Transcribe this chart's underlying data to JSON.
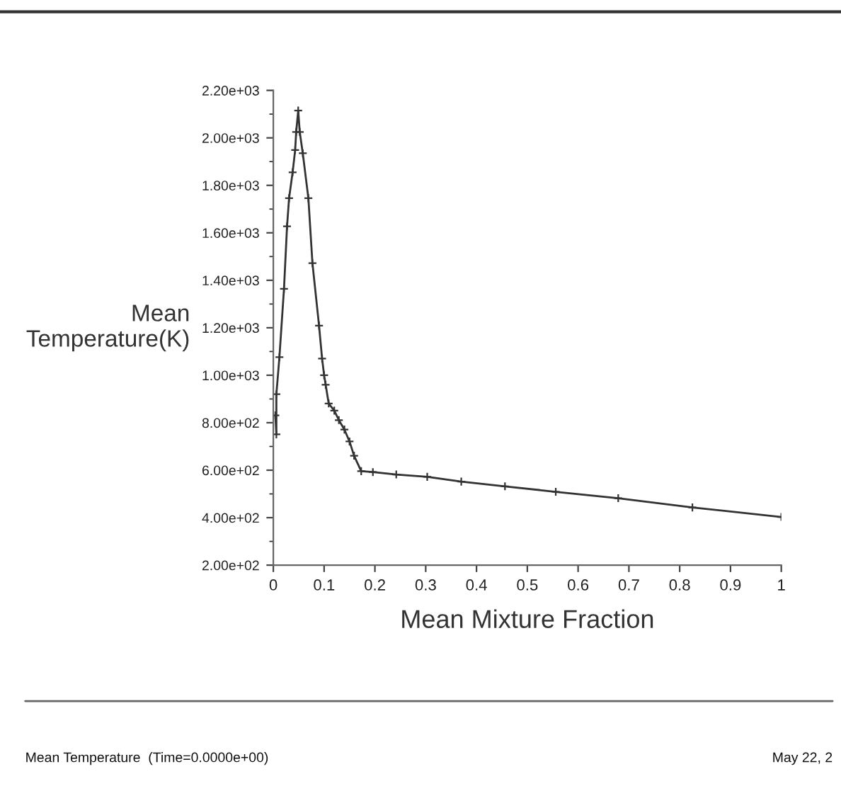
{
  "chart_data": {
    "type": "line",
    "xlabel": "Mean Mixture Fraction",
    "ylabel": "Mean\nTemperature(K)",
    "x": [
      0.004,
      0.006,
      0.006,
      0.012,
      0.021,
      0.027,
      0.031,
      0.038,
      0.043,
      0.045,
      0.049,
      0.052,
      0.058,
      0.069,
      0.077,
      0.09,
      0.096,
      0.1,
      0.103,
      0.109,
      0.12,
      0.129,
      0.14,
      0.15,
      0.159,
      0.173,
      0.196,
      0.242,
      0.303,
      0.37,
      0.456,
      0.556,
      0.679,
      0.825,
      1.0
    ],
    "series": [
      {
        "color": "#333333",
        "values": [
          831,
          751,
          920,
          1076,
          1364,
          1627,
          1746,
          1855,
          1949,
          2025,
          2115,
          2025,
          1935,
          1746,
          1472,
          1209,
          1070,
          1000,
          960,
          881,
          851,
          811,
          771,
          721,
          661,
          596,
          592,
          582,
          572,
          552,
          532,
          509,
          482,
          443,
          403
        ]
      }
    ],
    "xlim": [
      0,
      1
    ],
    "xticks": [
      0,
      0.1,
      0.2,
      0.3,
      0.4,
      0.5,
      0.6,
      0.7,
      0.8,
      0.9,
      1
    ],
    "ylim": [
      200,
      2200
    ],
    "yticks": [
      {
        "value": 200,
        "label": "2.00e+02"
      },
      {
        "value": 400,
        "label": "4.00e+02"
      },
      {
        "value": 600,
        "label": "6.00e+02"
      },
      {
        "value": 800,
        "label": "8.00e+02"
      },
      {
        "value": 1000,
        "label": "1.00e+03"
      },
      {
        "value": 1200,
        "label": "1.20e+03"
      },
      {
        "value": 1400,
        "label": "1.40e+03"
      },
      {
        "value": 1600,
        "label": "1.60e+03"
      },
      {
        "value": 1800,
        "label": "1.80e+03"
      },
      {
        "value": 2000,
        "label": "2.00e+03"
      },
      {
        "value": 2200,
        "label": "2.20e+03"
      }
    ],
    "marker": "cross",
    "line_style": "solid",
    "grid": false,
    "legend": false,
    "annotations": [
      "Mean Temperature  (Time=0.0000e+00)",
      "May 22, 2"
    ]
  }
}
